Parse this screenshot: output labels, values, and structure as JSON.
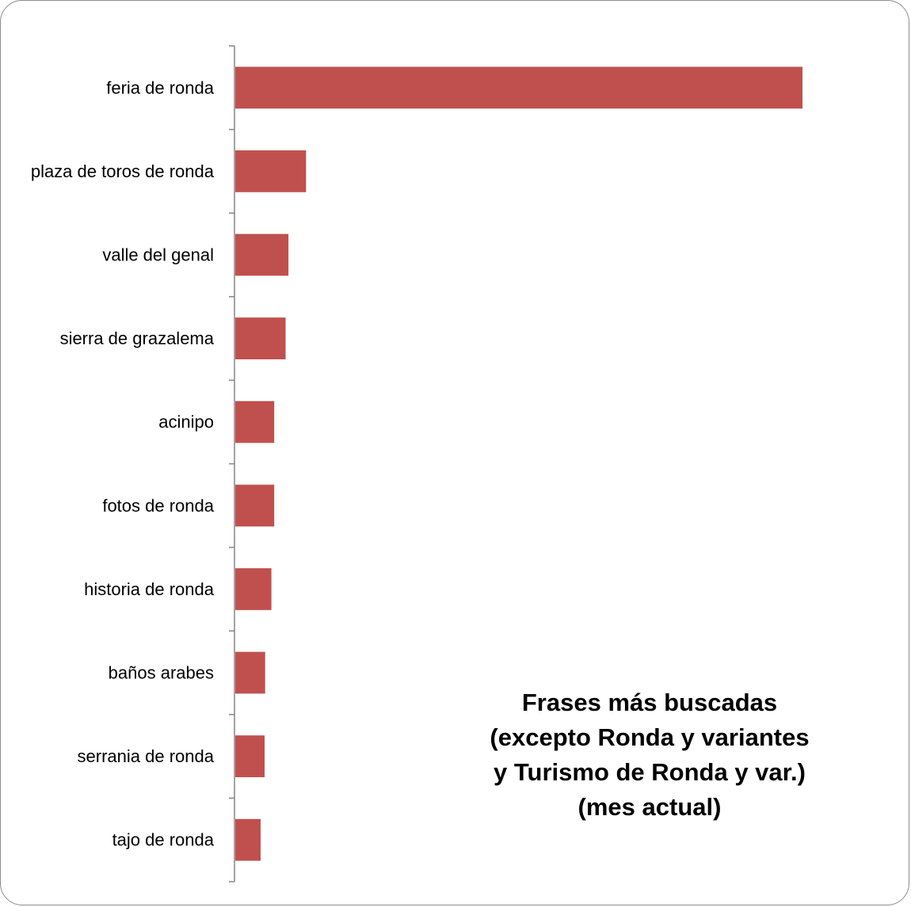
{
  "chart_data": {
    "type": "bar",
    "orientation": "horizontal",
    "title_lines": [
      "Frases más buscadas",
      "(excepto Ronda y variantes",
      "y Turismo de Ronda y var.)",
      "(mes actual)"
    ],
    "categories": [
      "feria de ronda",
      "plaza de toros de ronda",
      "valle del genal",
      "sierra de grazalema",
      "acinipo",
      "fotos de ronda",
      "historia de ronda",
      "baños arabes",
      "serrania de ronda",
      "tajo de ronda"
    ],
    "values": [
      100,
      12.6,
      9.5,
      9.0,
      7.0,
      7.0,
      6.5,
      5.4,
      5.3,
      4.6
    ],
    "xlim": [
      0,
      100
    ],
    "grid": false,
    "legend": "none",
    "bar_color": "#C0504D",
    "axis_color": "#868686"
  }
}
